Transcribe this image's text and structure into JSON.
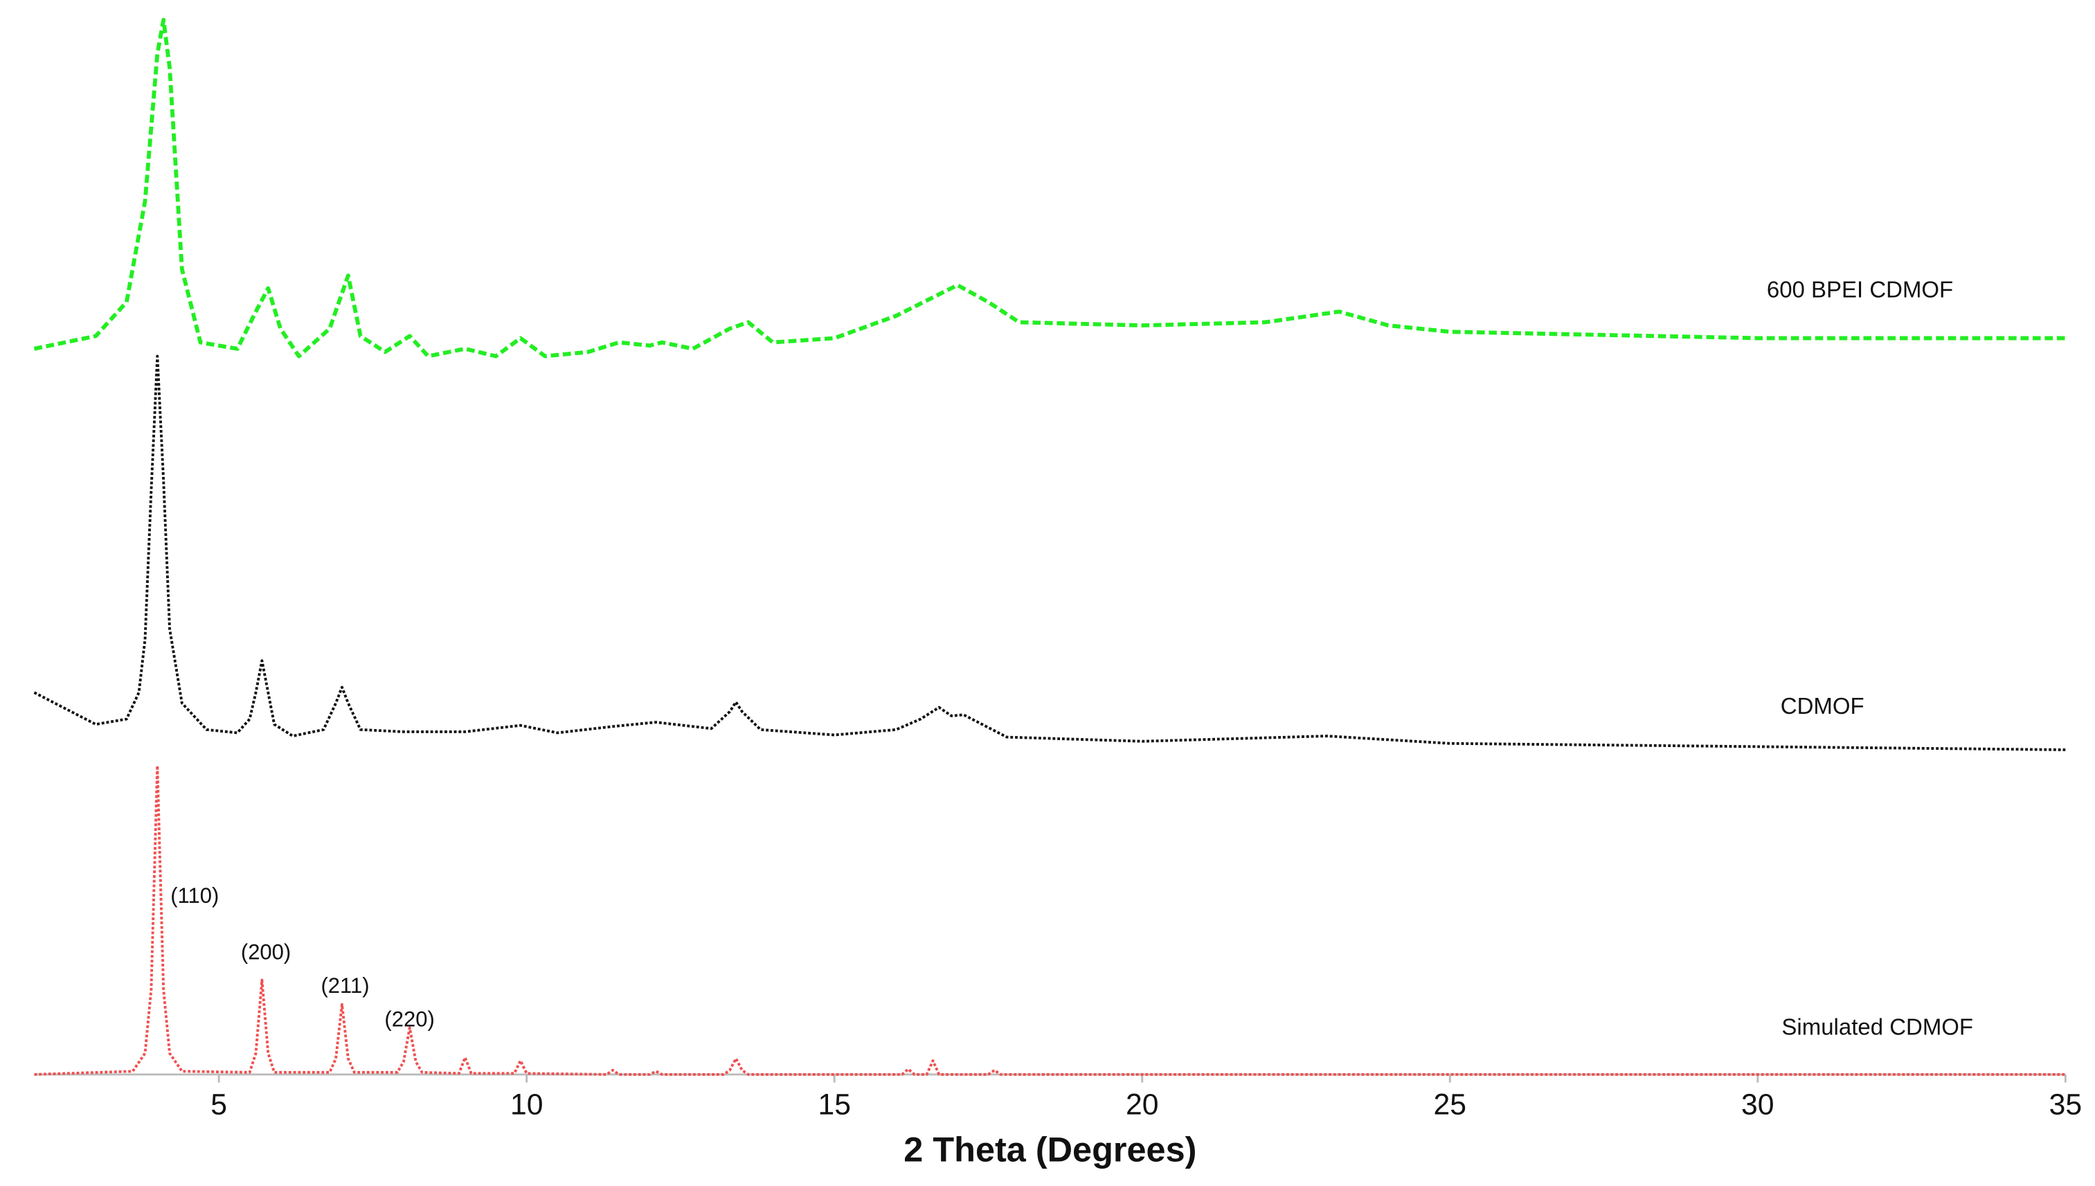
{
  "chart_data": {
    "type": "line",
    "xlabel": "2 Theta (Degrees)",
    "xlim": [
      2,
      35
    ],
    "xticks": [
      5,
      10,
      15,
      20,
      25,
      30,
      35
    ],
    "ylim": [
      0,
      100
    ],
    "annotations": [
      "(110)",
      "(200)",
      "(211)",
      "(220)"
    ],
    "series": [
      {
        "name": "600 BPEI CDMOF",
        "color": "#22ee22",
        "style": "dashed",
        "x": [
          2,
          3.0,
          3.5,
          3.8,
          4.0,
          4.1,
          4.2,
          4.4,
          4.7,
          5.3,
          5.6,
          5.8,
          6.0,
          6.3,
          6.8,
          7.1,
          7.3,
          7.7,
          8.1,
          8.4,
          9.0,
          9.5,
          9.9,
          10.3,
          11.0,
          11.5,
          12.0,
          12.2,
          12.7,
          13.3,
          13.6,
          14,
          15,
          16,
          17,
          17.5,
          18,
          20,
          22,
          23.2,
          24,
          25,
          30,
          35
        ],
        "values": [
          68.4,
          69.6,
          72.8,
          82.3,
          96.2,
          99.4,
          94.9,
          75.9,
          69.0,
          68.4,
          71.9,
          74.1,
          70.3,
          67.7,
          70.3,
          75.3,
          69.6,
          68.1,
          69.6,
          67.7,
          68.4,
          67.7,
          69.4,
          67.7,
          68.1,
          69.0,
          68.7,
          69.0,
          68.4,
          70.3,
          70.9,
          69.0,
          69.4,
          71.5,
          74.4,
          72.8,
          70.9,
          70.6,
          70.9,
          71.9,
          70.6,
          70.0,
          69.4,
          69.4
        ]
      },
      {
        "name": "CDMOF",
        "color": "#111111",
        "style": "dotted",
        "x": [
          2,
          2.5,
          3,
          3.5,
          3.7,
          3.8,
          3.9,
          4.0,
          4.1,
          4.2,
          4.4,
          4.8,
          5.3,
          5.5,
          5.6,
          5.7,
          5.8,
          5.9,
          6.2,
          6.7,
          6.9,
          7.0,
          7.1,
          7.3,
          8.0,
          9.0,
          9.9,
          10.5,
          11.4,
          12.1,
          13.0,
          13.3,
          13.4,
          13.5,
          13.8,
          15,
          16,
          16.4,
          16.7,
          16.9,
          17.1,
          17.4,
          17.8,
          20,
          23,
          25,
          30,
          35
        ],
        "values": [
          36,
          34.5,
          33,
          33.5,
          36,
          41,
          55,
          67.7,
          56,
          42,
          35,
          32.5,
          32.2,
          33.5,
          36,
          39,
          36,
          33,
          31.9,
          32.5,
          35,
          36.5,
          35,
          32.5,
          32.3,
          32.3,
          32.9,
          32.2,
          32.8,
          33.2,
          32.6,
          34.2,
          35.1,
          34.2,
          32.5,
          32,
          32.5,
          33.5,
          34.6,
          33.8,
          33.9,
          33,
          31.8,
          31.4,
          31.9,
          31.2,
          30.9,
          30.6
        ]
      },
      {
        "name": "Simulated CDMOF",
        "color": "#f05050",
        "style": "dotted",
        "x": [
          2,
          3.6,
          3.8,
          3.9,
          4.0,
          4.1,
          4.2,
          4.4,
          5.5,
          5.6,
          5.7,
          5.8,
          5.9,
          6.8,
          6.9,
          7.0,
          7.1,
          7.2,
          7.9,
          8.0,
          8.1,
          8.2,
          8.3,
          8.9,
          9.0,
          9.1,
          9.8,
          9.9,
          10.0,
          11.3,
          11.4,
          11.5,
          12.0,
          12.1,
          12.2,
          13.2,
          13.3,
          13.4,
          13.5,
          13.6,
          16.1,
          16.2,
          16.3,
          16.5,
          16.6,
          16.7,
          17.5,
          17.6,
          17.7,
          35
        ],
        "values": [
          0,
          0.3,
          2,
          8,
          29.1,
          8,
          2,
          0.3,
          0.2,
          2,
          8.9,
          2,
          0.2,
          0.2,
          1.5,
          6.6,
          1.5,
          0.2,
          0.2,
          1.2,
          4.4,
          1.2,
          0.2,
          0.1,
          1.6,
          0.1,
          0.1,
          1.3,
          0.1,
          0,
          0.4,
          0,
          0,
          0.3,
          0,
          0,
          0.4,
          1.5,
          0.4,
          0,
          0,
          0.5,
          0,
          0,
          1.3,
          0,
          0,
          0.4,
          0,
          0
        ]
      }
    ]
  }
}
